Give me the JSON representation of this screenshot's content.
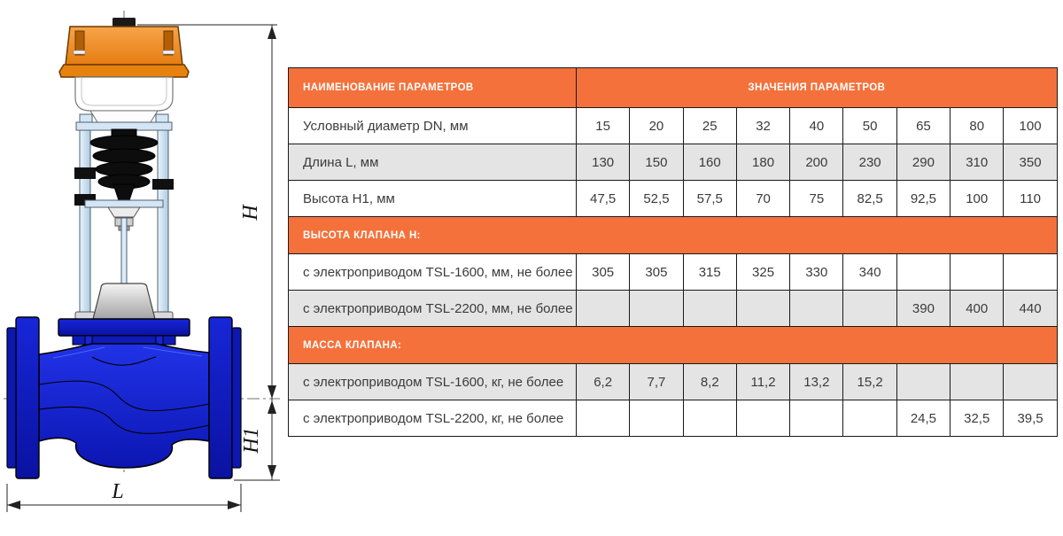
{
  "colors": {
    "accent_orange": "#F4713B",
    "row_gray": "#E4E4E4",
    "body_blue": "#1222D0",
    "actuator_orange": "#EF8A1B",
    "yoke_light_blue": "#CFE3F5"
  },
  "diagram": {
    "dim_h": "H",
    "dim_h1": "H1",
    "dim_l": "L"
  },
  "table": {
    "header": {
      "name_col": "НАИМЕНОВАНИЕ ПАРАМЕТРОВ",
      "values_col": "ЗНАЧЕНИЯ ПАРАМЕТРОВ"
    },
    "rows": [
      {
        "type": "data",
        "shade": "white",
        "label": "Условный диаметр DN, мм",
        "values": [
          "15",
          "20",
          "25",
          "32",
          "40",
          "50",
          "65",
          "80",
          "100"
        ]
      },
      {
        "type": "data",
        "shade": "gray",
        "label": "Длина L, мм",
        "values": [
          "130",
          "150",
          "160",
          "180",
          "200",
          "230",
          "290",
          "310",
          "350"
        ]
      },
      {
        "type": "data",
        "shade": "white",
        "label": "Высота H1, мм",
        "values": [
          "47,5",
          "52,5",
          "57,5",
          "70",
          "75",
          "82,5",
          "92,5",
          "100",
          "110"
        ]
      },
      {
        "type": "section",
        "label": "ВЫСОТА КЛАПАНА H:"
      },
      {
        "type": "data",
        "shade": "white",
        "label": "с электроприводом TSL-1600, мм, не более",
        "values": [
          "305",
          "305",
          "315",
          "325",
          "330",
          "340",
          "",
          "",
          ""
        ]
      },
      {
        "type": "data",
        "shade": "gray",
        "label": "с электроприводом TSL-2200, мм, не более",
        "values": [
          "",
          "",
          "",
          "",
          "",
          "",
          "390",
          "400",
          "440"
        ]
      },
      {
        "type": "section",
        "label": "МАССА КЛАПАНА:"
      },
      {
        "type": "data",
        "shade": "gray",
        "label": "с электроприводом TSL-1600, кг, не более",
        "values": [
          "6,2",
          "7,7",
          "8,2",
          "11,2",
          "13,2",
          "15,2",
          "",
          "",
          ""
        ]
      },
      {
        "type": "data",
        "shade": "white",
        "label": "с электроприводом TSL-2200, кг, не более",
        "values": [
          "",
          "",
          "",
          "",
          "",
          "",
          "24,5",
          "32,5",
          "39,5"
        ]
      }
    ]
  }
}
